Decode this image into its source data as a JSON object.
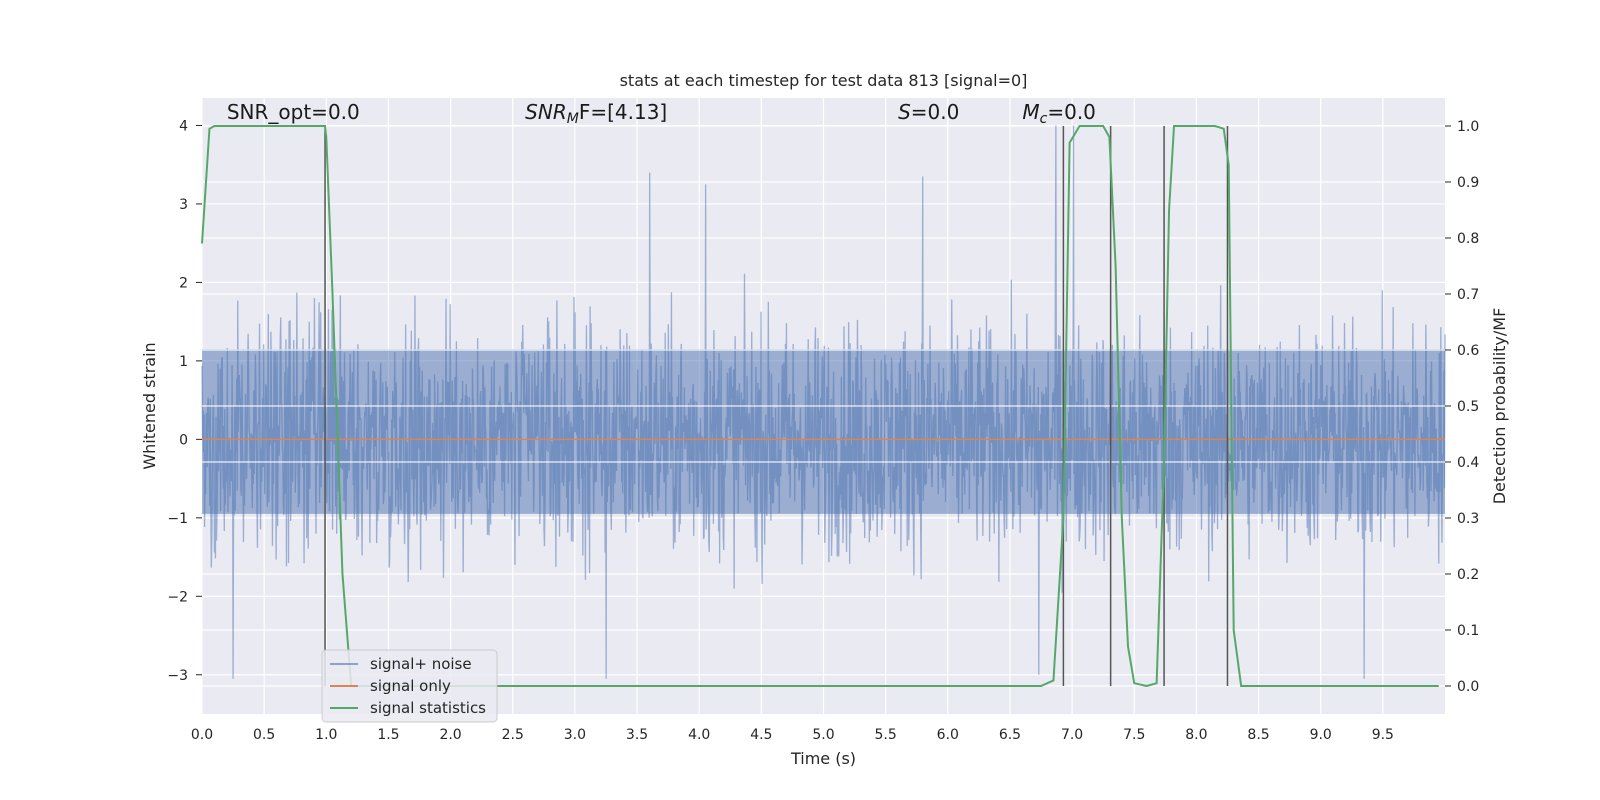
{
  "chart_data": {
    "type": "line",
    "title": "stats at each timestep for test data 813 [signal=0]",
    "xlabel": "Time (s)",
    "ylabel": "Whitened strain",
    "ylabel_right": "Detection probability/MF",
    "xlim": [
      0,
      10
    ],
    "ylim": [
      -3.5,
      4.35
    ],
    "ylim_right": [
      -0.05,
      1.05
    ],
    "x_ticks": [
      0.0,
      0.5,
      1.0,
      1.5,
      2.0,
      2.5,
      3.0,
      3.5,
      4.0,
      4.5,
      5.0,
      5.5,
      6.0,
      6.5,
      7.0,
      7.5,
      8.0,
      8.5,
      9.0,
      9.5
    ],
    "x_tick_labels": [
      "0.0",
      "0.5",
      "1.0",
      "1.5",
      "2.0",
      "2.5",
      "3.0",
      "3.5",
      "4.0",
      "4.5",
      "5.0",
      "5.5",
      "6.0",
      "6.5",
      "7.0",
      "7.5",
      "8.0",
      "8.5",
      "9.0",
      "9.5"
    ],
    "y_ticks": [
      -3,
      -2,
      -1,
      0,
      1,
      2,
      3,
      4
    ],
    "y_tick_labels": [
      "−3",
      "−2",
      "−1",
      "0",
      "1",
      "2",
      "3",
      "4"
    ],
    "y_right_ticks": [
      0.0,
      0.1,
      0.2,
      0.3,
      0.4,
      0.5,
      0.6,
      0.7,
      0.8,
      0.9,
      1.0
    ],
    "y_right_tick_labels": [
      "0.0",
      "0.1",
      "0.2",
      "0.3",
      "0.4",
      "0.5",
      "0.6",
      "0.7",
      "0.8",
      "0.9",
      "1.0"
    ],
    "grid": true,
    "legend_position": "bottom-left",
    "annotations": [
      {
        "parts": [
          {
            "t": "SNR_opt=0.0",
            "italic": false
          }
        ],
        "x": 0.2
      },
      {
        "parts": [
          {
            "t": "SNR",
            "italic": true
          },
          {
            "t": "M",
            "italic": true,
            "sub": true
          },
          {
            "t": "F=[4.13]",
            "italic": false
          }
        ],
        "x": 2.6
      },
      {
        "parts": [
          {
            "t": "S",
            "italic": true
          },
          {
            "t": "=0.0",
            "italic": false
          }
        ],
        "x": 5.6
      },
      {
        "parts": [
          {
            "t": "M",
            "italic": true
          },
          {
            "t": "c",
            "italic": true,
            "sub": true
          },
          {
            "t": "=0.0",
            "italic": false
          }
        ],
        "x": 6.6
      }
    ],
    "annotation_y": 4.08,
    "series": [
      {
        "name": "signal+ noise",
        "color": "#4c72b0",
        "axis": "left",
        "kind": "noise",
        "core_band": [
          -0.95,
          1.15
        ],
        "typical_peak": [
          1.5,
          2.4
        ],
        "tallest_peaks": [
          {
            "x": 3.6,
            "y": 3.4
          },
          {
            "x": 4.05,
            "y": 3.25
          },
          {
            "x": 5.8,
            "y": 3.35
          },
          {
            "x": 6.87,
            "y": 4.0
          },
          {
            "x": 7.01,
            "y": 4.0
          },
          {
            "x": 3.25,
            "y": -3.05
          },
          {
            "x": 0.25,
            "y": -3.05
          },
          {
            "x": 9.35,
            "y": -3.05
          },
          {
            "x": 6.73,
            "y": -3.0
          }
        ]
      },
      {
        "name": "signal only",
        "color": "#dd8452",
        "axis": "left",
        "x": [
          0,
          10
        ],
        "y": [
          0,
          0
        ]
      },
      {
        "name": "signal statistics",
        "color": "#55a868",
        "axis": "right",
        "x": [
          0.0,
          0.06,
          0.1,
          0.2,
          0.9,
          0.99,
          1.0,
          1.05,
          1.13,
          1.2,
          6.75,
          6.85,
          6.93,
          6.98,
          7.06,
          7.16,
          7.25,
          7.3,
          7.35,
          7.4,
          7.45,
          7.5,
          7.6,
          7.68,
          7.74,
          7.78,
          7.82,
          8.15,
          8.22,
          8.26,
          8.3,
          8.36,
          8.42,
          9.95
        ],
        "y": [
          0.79,
          0.995,
          1.0,
          1.0,
          1.0,
          1.0,
          0.98,
          0.7,
          0.2,
          0.0,
          0.0,
          0.01,
          0.3,
          0.97,
          1.0,
          1.0,
          1.0,
          0.98,
          0.75,
          0.3,
          0.07,
          0.005,
          0.0,
          0.005,
          0.4,
          0.85,
          1.0,
          1.0,
          0.995,
          0.93,
          0.1,
          0.0,
          0.0,
          0.0
        ]
      }
    ],
    "vlines": [
      {
        "x": 0.99,
        "color": "#555555"
      },
      {
        "x": 6.93,
        "color": "#555555"
      },
      {
        "x": 7.31,
        "color": "#555555"
      },
      {
        "x": 7.74,
        "color": "#555555"
      },
      {
        "x": 8.25,
        "color": "#555555"
      }
    ]
  }
}
